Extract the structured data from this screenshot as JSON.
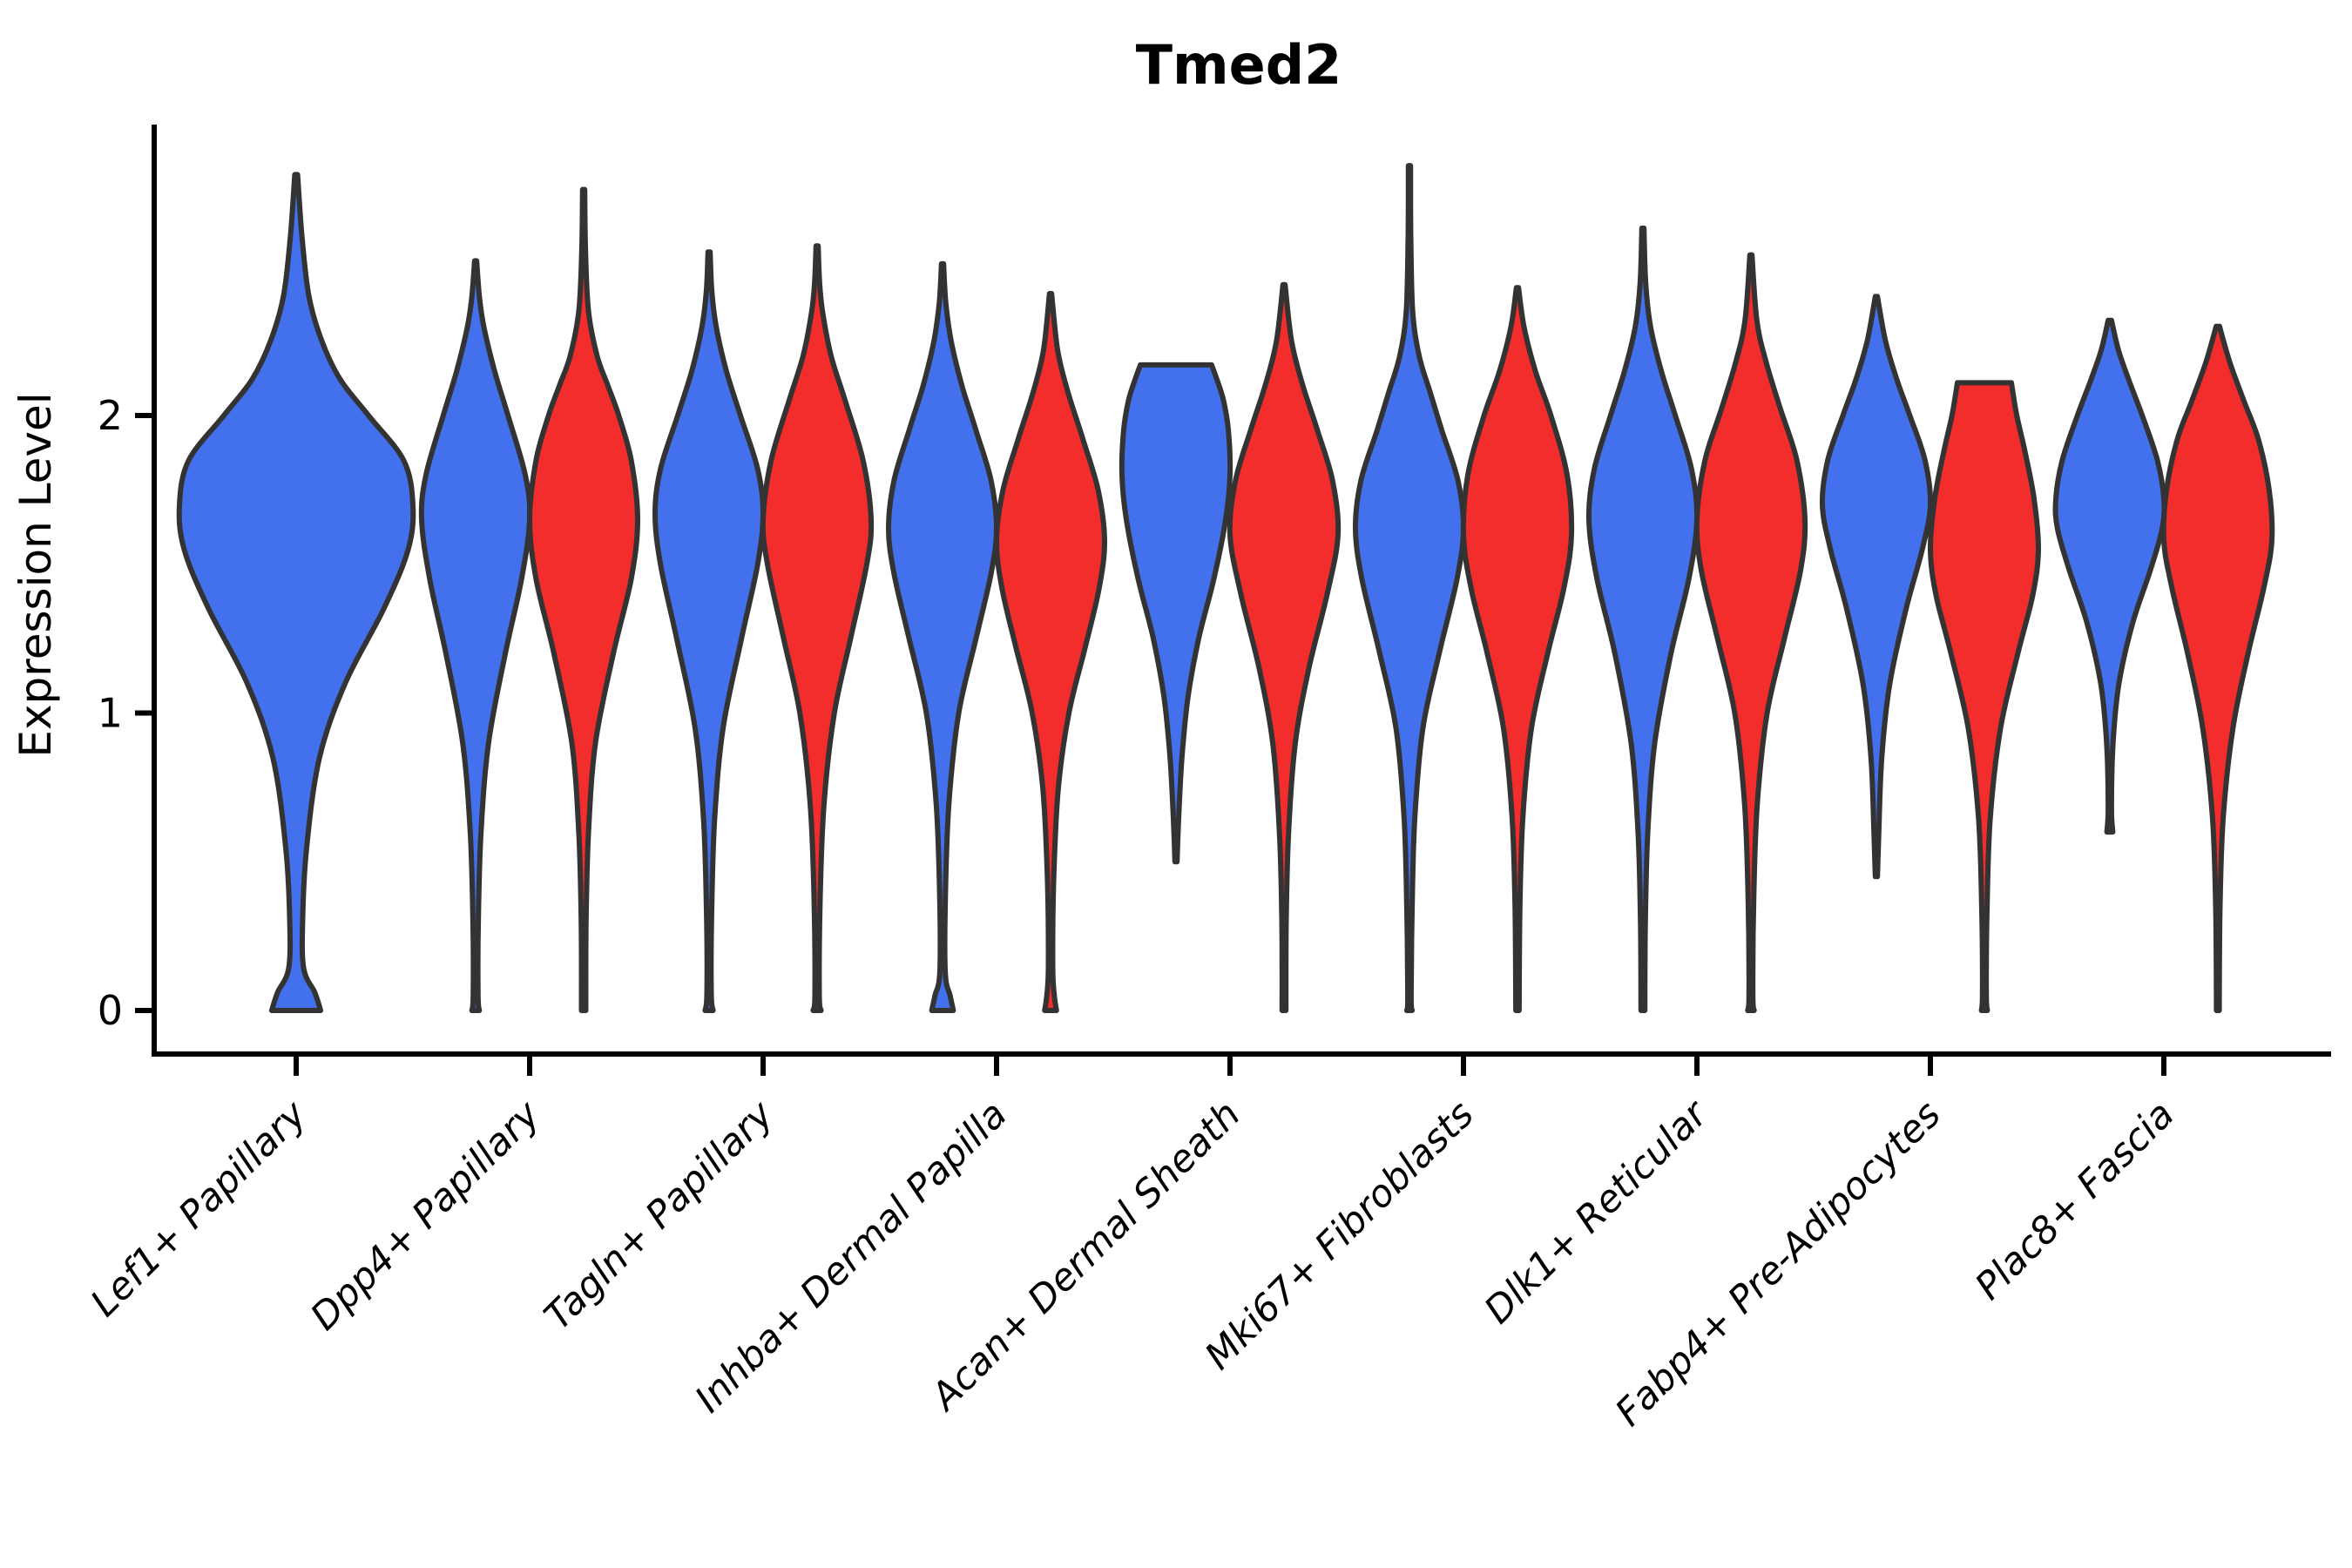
{
  "chart_data": {
    "type": "violin",
    "title": "Tmed2",
    "xlabel": "",
    "ylabel": "Expression Level",
    "ylim": [
      -0.15,
      2.97
    ],
    "yticks": [
      {
        "value": 0,
        "label": "0"
      },
      {
        "value": 1,
        "label": "1"
      },
      {
        "value": 2,
        "label": "2"
      }
    ],
    "grid": false,
    "legend": "none",
    "colors": {
      "condition_a": "#4370EC",
      "condition_b": "#F32C2C",
      "outline": "#333333",
      "axis": "#000000"
    },
    "categories": [
      "Lef1+ Papillary",
      "Dpp4+ Papillary",
      "Tagln+ Papillary",
      "Inhba+ Dermal Papilla",
      "Acan+ Dermal Sheath",
      "Mki67+ Fibroblasts",
      "Dlk1+ Reticular",
      "Fabp4+ Pre-Adipocytes",
      "Plac8+ Fascia"
    ],
    "violins": [
      {
        "cat": 0,
        "side": "center",
        "condition": "condition_a",
        "span": "full",
        "profile": [
          [
            0,
            0.21
          ],
          [
            0.06,
            0.16
          ],
          [
            0.14,
            0.065
          ],
          [
            0.3,
            0.055
          ],
          [
            0.55,
            0.09
          ],
          [
            0.85,
            0.2
          ],
          [
            1.1,
            0.42
          ],
          [
            1.35,
            0.75
          ],
          [
            1.55,
            0.96
          ],
          [
            1.7,
            1.0
          ],
          [
            1.85,
            0.92
          ],
          [
            2.0,
            0.62
          ],
          [
            2.12,
            0.38
          ],
          [
            2.25,
            0.22
          ],
          [
            2.4,
            0.11
          ],
          [
            2.6,
            0.05
          ],
          [
            2.81,
            0.012
          ]
        ]
      },
      {
        "cat": 1,
        "side": "left",
        "condition": "condition_a",
        "span": "half",
        "profile": [
          [
            0,
            0.07
          ],
          [
            0.05,
            0.045
          ],
          [
            0.3,
            0.05
          ],
          [
            0.6,
            0.1
          ],
          [
            0.9,
            0.24
          ],
          [
            1.2,
            0.55
          ],
          [
            1.45,
            0.85
          ],
          [
            1.65,
            1.0
          ],
          [
            1.8,
            0.92
          ],
          [
            2.0,
            0.6
          ],
          [
            2.15,
            0.35
          ],
          [
            2.3,
            0.15
          ],
          [
            2.4,
            0.07
          ],
          [
            2.52,
            0.012
          ]
        ]
      },
      {
        "cat": 1,
        "side": "right",
        "condition": "condition_b",
        "span": "half",
        "profile": [
          [
            0,
            0.04
          ],
          [
            0.3,
            0.045
          ],
          [
            0.6,
            0.09
          ],
          [
            0.9,
            0.22
          ],
          [
            1.2,
            0.55
          ],
          [
            1.45,
            0.88
          ],
          [
            1.65,
            1.0
          ],
          [
            1.85,
            0.88
          ],
          [
            2.0,
            0.65
          ],
          [
            2.1,
            0.45
          ],
          [
            2.2,
            0.25
          ],
          [
            2.35,
            0.09
          ],
          [
            2.55,
            0.035
          ],
          [
            2.76,
            0.012
          ]
        ]
      },
      {
        "cat": 2,
        "side": "left",
        "condition": "condition_a",
        "span": "half",
        "profile": [
          [
            0,
            0.075
          ],
          [
            0.06,
            0.04
          ],
          [
            0.35,
            0.05
          ],
          [
            0.65,
            0.105
          ],
          [
            0.95,
            0.26
          ],
          [
            1.25,
            0.6
          ],
          [
            1.5,
            0.9
          ],
          [
            1.67,
            1.0
          ],
          [
            1.82,
            0.9
          ],
          [
            2.0,
            0.58
          ],
          [
            2.15,
            0.32
          ],
          [
            2.3,
            0.13
          ],
          [
            2.42,
            0.05
          ],
          [
            2.55,
            0.012
          ]
        ]
      },
      {
        "cat": 2,
        "side": "right",
        "condition": "condition_b",
        "span": "half",
        "profile": [
          [
            0,
            0.075
          ],
          [
            0.06,
            0.04
          ],
          [
            0.4,
            0.06
          ],
          [
            0.7,
            0.13
          ],
          [
            1.0,
            0.32
          ],
          [
            1.25,
            0.62
          ],
          [
            1.5,
            0.92
          ],
          [
            1.65,
            1.0
          ],
          [
            1.85,
            0.85
          ],
          [
            2.05,
            0.52
          ],
          [
            2.2,
            0.26
          ],
          [
            2.35,
            0.1
          ],
          [
            2.45,
            0.045
          ],
          [
            2.57,
            0.012
          ]
        ]
      },
      {
        "cat": 3,
        "side": "left",
        "condition": "condition_a",
        "span": "half",
        "profile": [
          [
            0,
            0.2
          ],
          [
            0.05,
            0.14
          ],
          [
            0.13,
            0.05
          ],
          [
            0.4,
            0.055
          ],
          [
            0.7,
            0.12
          ],
          [
            1.0,
            0.3
          ],
          [
            1.25,
            0.62
          ],
          [
            1.47,
            0.9
          ],
          [
            1.62,
            1.0
          ],
          [
            1.78,
            0.9
          ],
          [
            1.95,
            0.62
          ],
          [
            2.1,
            0.36
          ],
          [
            2.25,
            0.16
          ],
          [
            2.38,
            0.06
          ],
          [
            2.51,
            0.012
          ]
        ]
      },
      {
        "cat": 3,
        "side": "right",
        "condition": "condition_b",
        "span": "half",
        "profile": [
          [
            0,
            0.11
          ],
          [
            0.05,
            0.07
          ],
          [
            0.15,
            0.04
          ],
          [
            0.45,
            0.06
          ],
          [
            0.75,
            0.145
          ],
          [
            1.0,
            0.34
          ],
          [
            1.22,
            0.64
          ],
          [
            1.42,
            0.9
          ],
          [
            1.58,
            1.0
          ],
          [
            1.75,
            0.88
          ],
          [
            1.92,
            0.6
          ],
          [
            2.08,
            0.32
          ],
          [
            2.22,
            0.13
          ],
          [
            2.41,
            0.02
          ]
        ]
      },
      {
        "cat": 4,
        "side": "left",
        "condition": "condition_a",
        "span": "half",
        "profile": [
          [
            0.5,
            0.02
          ],
          [
            0.65,
            0.05
          ],
          [
            0.85,
            0.11
          ],
          [
            1.05,
            0.22
          ],
          [
            1.25,
            0.42
          ],
          [
            1.45,
            0.7
          ],
          [
            1.65,
            0.92
          ],
          [
            1.8,
            1.0
          ],
          [
            1.95,
            0.97
          ],
          [
            2.05,
            0.88
          ],
          [
            2.12,
            0.76
          ],
          [
            2.17,
            0.66
          ]
        ]
      },
      {
        "cat": 4,
        "side": "right",
        "condition": "condition_b",
        "span": "half",
        "profile": [
          [
            0,
            0.035
          ],
          [
            0.3,
            0.04
          ],
          [
            0.6,
            0.085
          ],
          [
            0.9,
            0.21
          ],
          [
            1.15,
            0.46
          ],
          [
            1.4,
            0.8
          ],
          [
            1.6,
            1.0
          ],
          [
            1.78,
            0.9
          ],
          [
            1.95,
            0.62
          ],
          [
            2.1,
            0.35
          ],
          [
            2.25,
            0.14
          ],
          [
            2.44,
            0.02
          ]
        ]
      },
      {
        "cat": 5,
        "side": "left",
        "condition": "condition_a",
        "span": "half",
        "profile": [
          [
            0,
            0.05
          ],
          [
            0.05,
            0.03
          ],
          [
            0.35,
            0.05
          ],
          [
            0.65,
            0.1
          ],
          [
            0.95,
            0.25
          ],
          [
            1.2,
            0.55
          ],
          [
            1.45,
            0.88
          ],
          [
            1.62,
            1.0
          ],
          [
            1.78,
            0.9
          ],
          [
            1.95,
            0.6
          ],
          [
            2.08,
            0.38
          ],
          [
            2.2,
            0.18
          ],
          [
            2.35,
            0.06
          ],
          [
            2.6,
            0.025
          ],
          [
            2.84,
            0.012
          ]
        ]
      },
      {
        "cat": 5,
        "side": "right",
        "condition": "condition_b",
        "span": "half",
        "profile": [
          [
            0,
            0.03
          ],
          [
            0.35,
            0.045
          ],
          [
            0.65,
            0.1
          ],
          [
            0.95,
            0.26
          ],
          [
            1.2,
            0.56
          ],
          [
            1.42,
            0.86
          ],
          [
            1.6,
            1.0
          ],
          [
            1.8,
            0.92
          ],
          [
            2.0,
            0.62
          ],
          [
            2.15,
            0.33
          ],
          [
            2.3,
            0.12
          ],
          [
            2.43,
            0.02
          ]
        ]
      },
      {
        "cat": 6,
        "side": "left",
        "condition": "condition_a",
        "span": "half",
        "profile": [
          [
            0,
            0.035
          ],
          [
            0.3,
            0.045
          ],
          [
            0.6,
            0.09
          ],
          [
            0.9,
            0.22
          ],
          [
            1.2,
            0.52
          ],
          [
            1.45,
            0.85
          ],
          [
            1.65,
            1.0
          ],
          [
            1.82,
            0.9
          ],
          [
            2.0,
            0.6
          ],
          [
            2.15,
            0.34
          ],
          [
            2.3,
            0.14
          ],
          [
            2.45,
            0.05
          ],
          [
            2.63,
            0.012
          ]
        ]
      },
      {
        "cat": 6,
        "side": "right",
        "condition": "condition_b",
        "span": "half",
        "profile": [
          [
            0,
            0.06
          ],
          [
            0.06,
            0.035
          ],
          [
            0.4,
            0.055
          ],
          [
            0.7,
            0.12
          ],
          [
            1.0,
            0.3
          ],
          [
            1.25,
            0.62
          ],
          [
            1.48,
            0.92
          ],
          [
            1.65,
            1.0
          ],
          [
            1.85,
            0.85
          ],
          [
            2.02,
            0.55
          ],
          [
            2.18,
            0.28
          ],
          [
            2.32,
            0.11
          ],
          [
            2.54,
            0.015
          ]
        ]
      },
      {
        "cat": 7,
        "side": "left",
        "condition": "condition_a",
        "span": "half",
        "profile": [
          [
            0.45,
            0.02
          ],
          [
            0.6,
            0.045
          ],
          [
            0.85,
            0.1
          ],
          [
            1.1,
            0.25
          ],
          [
            1.35,
            0.55
          ],
          [
            1.55,
            0.85
          ],
          [
            1.7,
            1.0
          ],
          [
            1.85,
            0.9
          ],
          [
            2.0,
            0.62
          ],
          [
            2.12,
            0.38
          ],
          [
            2.25,
            0.17
          ],
          [
            2.4,
            0.02
          ]
        ]
      },
      {
        "cat": 7,
        "side": "right",
        "condition": "condition_b",
        "span": "half",
        "profile": [
          [
            0,
            0.055
          ],
          [
            0.06,
            0.035
          ],
          [
            0.35,
            0.05
          ],
          [
            0.65,
            0.11
          ],
          [
            0.95,
            0.3
          ],
          [
            1.2,
            0.62
          ],
          [
            1.4,
            0.9
          ],
          [
            1.55,
            1.0
          ],
          [
            1.72,
            0.92
          ],
          [
            1.88,
            0.75
          ],
          [
            2.0,
            0.6
          ],
          [
            2.11,
            0.5
          ]
        ]
      },
      {
        "cat": 8,
        "side": "left",
        "condition": "condition_a",
        "span": "half",
        "profile": [
          [
            0.6,
            0.055
          ],
          [
            0.68,
            0.03
          ],
          [
            0.9,
            0.06
          ],
          [
            1.1,
            0.17
          ],
          [
            1.3,
            0.42
          ],
          [
            1.48,
            0.75
          ],
          [
            1.62,
            0.97
          ],
          [
            1.72,
            1.0
          ],
          [
            1.85,
            0.88
          ],
          [
            2.0,
            0.6
          ],
          [
            2.12,
            0.35
          ],
          [
            2.22,
            0.16
          ],
          [
            2.32,
            0.03
          ]
        ]
      },
      {
        "cat": 8,
        "side": "right",
        "condition": "condition_b",
        "span": "half",
        "profile": [
          [
            0,
            0.025
          ],
          [
            0.35,
            0.04
          ],
          [
            0.65,
            0.1
          ],
          [
            0.95,
            0.28
          ],
          [
            1.2,
            0.56
          ],
          [
            1.42,
            0.85
          ],
          [
            1.58,
            1.0
          ],
          [
            1.75,
            0.95
          ],
          [
            1.92,
            0.75
          ],
          [
            2.05,
            0.48
          ],
          [
            2.18,
            0.22
          ],
          [
            2.3,
            0.03
          ]
        ]
      }
    ]
  }
}
